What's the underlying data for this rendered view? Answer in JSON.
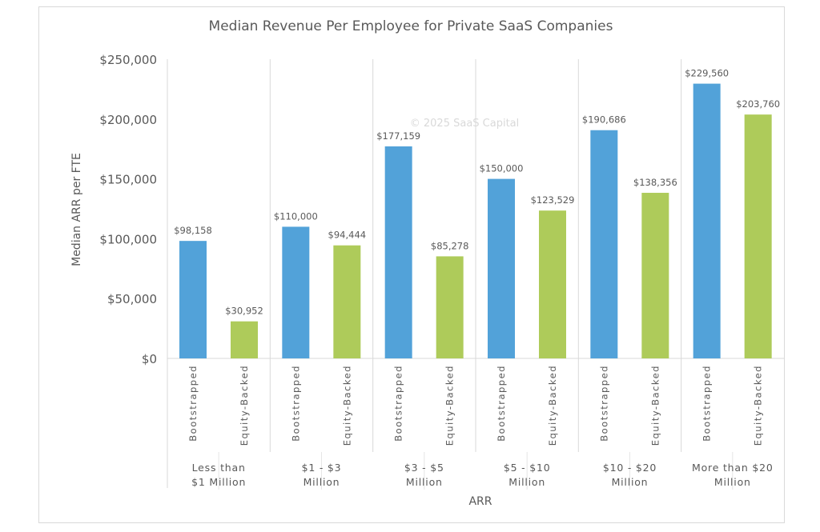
{
  "chart_data": {
    "type": "bar",
    "title": "Median Revenue Per Employee for Private SaaS Companies",
    "watermark": "© 2025 SaaS Capital",
    "xlabel": "ARR",
    "ylabel": "Median ARR per FTE",
    "ylim": [
      0,
      250000
    ],
    "yticks": [
      "$0",
      "$50,000",
      "$100,000",
      "$150,000",
      "$200,000",
      "$250,000"
    ],
    "grid": false,
    "legend": "none",
    "groups": [
      {
        "label": [
          "Less than",
          "$1 Million"
        ],
        "bars": [
          {
            "category": "Bootstrapped",
            "value": 98158,
            "label": "$98,158"
          },
          {
            "category": "Equity-Backed",
            "value": 30952,
            "label": "$30,952"
          }
        ]
      },
      {
        "label": [
          "$1 - $3",
          "Million"
        ],
        "bars": [
          {
            "category": "Bootstrapped",
            "value": 110000,
            "label": "$110,000"
          },
          {
            "category": "Equity-Backed",
            "value": 94444,
            "label": "$94,444"
          }
        ]
      },
      {
        "label": [
          "$3 - $5",
          "Million"
        ],
        "bars": [
          {
            "category": "Bootstrapped",
            "value": 177159,
            "label": "$177,159"
          },
          {
            "category": "Equity-Backed",
            "value": 85278,
            "label": "$85,278"
          }
        ]
      },
      {
        "label": [
          "$5 - $10",
          "Million"
        ],
        "bars": [
          {
            "category": "Bootstrapped",
            "value": 150000,
            "label": "$150,000"
          },
          {
            "category": "Equity-Backed",
            "value": 123529,
            "label": "$123,529"
          }
        ]
      },
      {
        "label": [
          "$10 - $20",
          "Million"
        ],
        "bars": [
          {
            "category": "Bootstrapped",
            "value": 190686,
            "label": "$190,686"
          },
          {
            "category": "Equity-Backed",
            "value": 138356,
            "label": "$138,356"
          }
        ]
      },
      {
        "label": [
          "More than $20",
          "Million"
        ],
        "bars": [
          {
            "category": "Bootstrapped",
            "value": 229560,
            "label": "$229,560"
          },
          {
            "category": "Equity-Backed",
            "value": 203760,
            "label": "$203,760"
          }
        ]
      }
    ],
    "colors": {
      "Bootstrapped": "#52a2d9",
      "Equity-Backed": "#aecb5a"
    }
  }
}
